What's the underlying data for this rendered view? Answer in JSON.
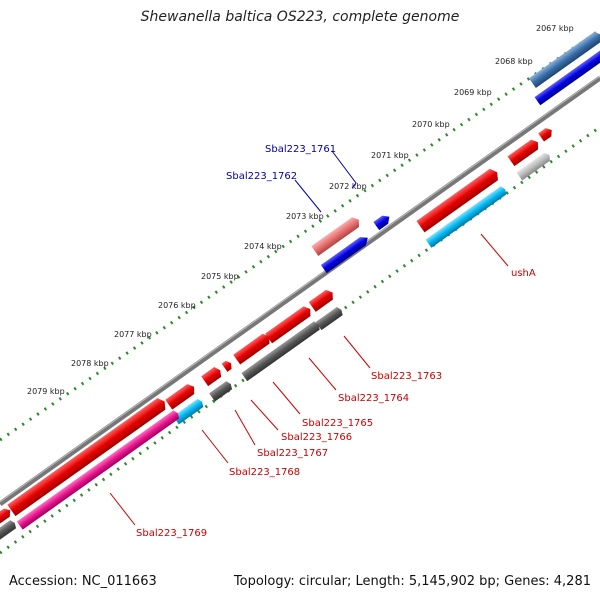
{
  "title": "Shewanella baltica OS223, complete genome",
  "footer": {
    "accession": "Accession: NC_011663",
    "summary": "Topology: circular; Length: 5,145,902 bp; Genes: 4,281"
  },
  "colors": {
    "backbone": "#7a7a7a",
    "ruler_dots": "#2a8a2a",
    "red_gene": "#e60000",
    "dark_gray_gene": "#555555",
    "light_gray_gene": "#bbbbbb",
    "blue_gene": "#0000e0",
    "steel_blue_gene": "#3a6ea8",
    "cyan_gene": "#00b8f0",
    "pink_gene": "#e8148c",
    "salmon_gene": "#e87070",
    "label_red": "#cc0000",
    "label_blue": "#0000aa"
  },
  "scale_labels": [
    "2067 kbp",
    "2068 kbp",
    "2069 kbp",
    "2070 kbp",
    "2071 kbp",
    "2072 kbp",
    "2073 kbp",
    "2074 kbp",
    "2075 kbp",
    "2076 kbp",
    "2077 kbp",
    "2078 kbp",
    "2079 kbp"
  ],
  "gene_labels": {
    "sbal1761": "Sbal223_1761",
    "sbal1762": "Sbal223_1762",
    "usha": "ushA",
    "sbal1763": "Sbal223_1763",
    "sbal1764": "Sbal223_1764",
    "sbal1765": "Sbal223_1765",
    "sbal1766": "Sbal223_1766",
    "sbal1767": "Sbal223_1767",
    "sbal1768": "Sbal223_1768",
    "sbal1769": "Sbal223_1769"
  }
}
